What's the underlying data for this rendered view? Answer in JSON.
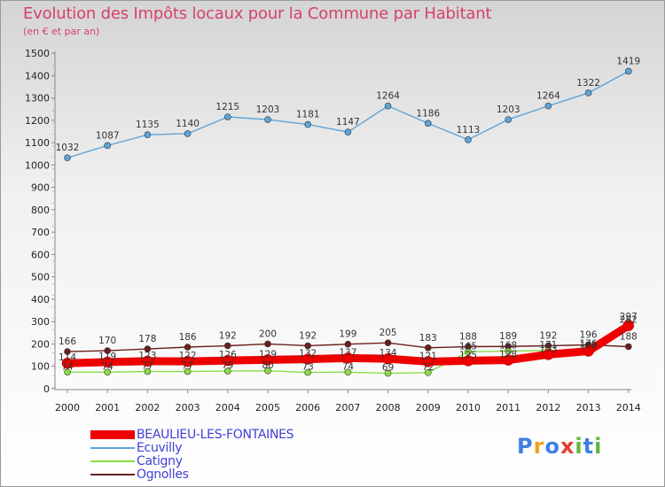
{
  "title": "Evolution des Impôts locaux pour la Commune par Habitant",
  "subtitle": "(en € et par an)",
  "logo": {
    "letters": [
      "P",
      "r",
      "o",
      "x",
      "i",
      "t",
      "i"
    ],
    "colors": [
      "#3f7fe0",
      "#f0a020",
      "#3f7fe0",
      "#e04030",
      "#5fb838",
      "#3f7fe0",
      "#5fb838"
    ]
  },
  "chart_data": {
    "type": "line",
    "x": [
      "2000",
      "2001",
      "2002",
      "2003",
      "2004",
      "2005",
      "2006",
      "2007",
      "2008",
      "2009",
      "2010",
      "2011",
      "2012",
      "2013",
      "2014"
    ],
    "ylim": [
      0,
      1500
    ],
    "yticks": [
      0,
      100,
      200,
      300,
      400,
      500,
      600,
      700,
      800,
      900,
      1000,
      1100,
      1200,
      1300,
      1400,
      1500
    ],
    "grid": false,
    "series": [
      {
        "name": "BEAULIEU-LES-FONTAINES",
        "color": "#ee0000",
        "values": [
          114,
          119,
          123,
          122,
          126,
          129,
          132,
          137,
          134,
          121,
          125,
          128,
          153,
          168,
          282
        ],
        "labels": [
          "114",
          "119",
          "123",
          "122",
          "126",
          "129",
          "132",
          "137",
          "134",
          "121",
          "125",
          "128",
          "153",
          "168",
          "282"
        ]
      },
      {
        "name": "Ecuvilly",
        "color": "#5ea4d8",
        "values": [
          1032,
          1087,
          1135,
          1140,
          1215,
          1203,
          1181,
          1147,
          1264,
          1186,
          1113,
          1203,
          1264,
          1322,
          1419
        ],
        "labels": [
          "1032",
          "1087",
          "1135",
          "1140",
          "1215",
          "1203",
          "1181",
          "1147",
          "1264",
          "1186",
          "1113",
          "1203",
          "1264",
          "1322",
          "1419"
        ]
      },
      {
        "name": "Catigny",
        "color": "#88dd44",
        "values": [
          74,
          74,
          77,
          77,
          79,
          80,
          73,
          74,
          69,
          72,
          165,
          168,
          171,
          176,
          297
        ],
        "labels": [
          "74",
          "74",
          "77",
          "77",
          "79",
          "80",
          "73",
          "74",
          "69",
          "72",
          "165",
          "168",
          "171",
          "176",
          "297"
        ]
      },
      {
        "name": "Ognolles",
        "color": "#6b1f1f",
        "values": [
          166,
          170,
          178,
          186,
          192,
          200,
          192,
          199,
          205,
          183,
          188,
          189,
          192,
          196,
          188
        ],
        "labels": [
          "166",
          "170",
          "178",
          "186",
          "192",
          "200",
          "192",
          "199",
          "205",
          "183",
          "188",
          "189",
          "192",
          "196",
          "188"
        ]
      }
    ]
  }
}
